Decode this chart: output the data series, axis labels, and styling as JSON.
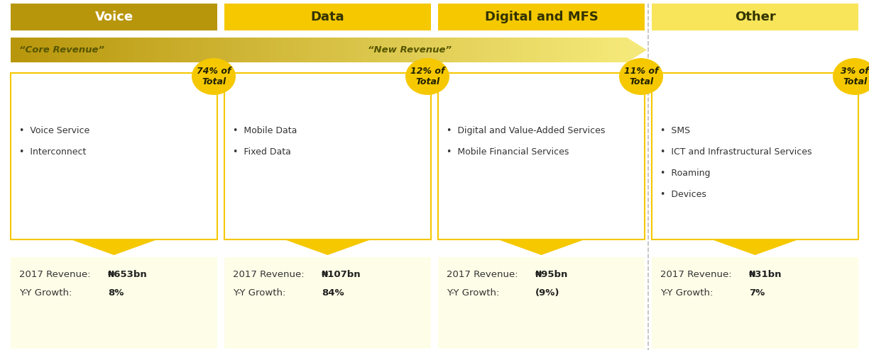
{
  "bg_color": "#ffffff",
  "categories": [
    "Voice",
    "Data",
    "Digital and MFS",
    "Other"
  ],
  "header_colors": [
    "#b8960c",
    "#f5c800",
    "#f5c800",
    "#f8e55a"
  ],
  "header_text_colors": [
    "#ffffff",
    "#333300",
    "#333300",
    "#333300"
  ],
  "percentages": [
    "74% of\nTotal",
    "12% of\nTotal",
    "11% of\nTotal",
    "3% of\nTotal"
  ],
  "bullet_items": [
    [
      "•  Voice Service",
      "•  Interconnect"
    ],
    [
      "•  Mobile Data",
      "•  Fixed Data"
    ],
    [
      "•  Digital and Value-Added Services",
      "•  Mobile Financial Services"
    ],
    [
      "•  SMS",
      "•  ICT and Infrastructural Services",
      "•  Roaming",
      "•  Devices"
    ]
  ],
  "revenues": [
    "₦653bn",
    "₦107bn",
    "₦95bn",
    "₦31bn"
  ],
  "growths": [
    "8%",
    "84%",
    "(9%)",
    "7%"
  ],
  "bottom_bg": "#fefee8",
  "box_border": "#f5c800",
  "circle_color": "#f5c800",
  "arrow_color": "#f5c800",
  "core_label": "“Core Revenue”",
  "new_label": "“New Revenue”"
}
